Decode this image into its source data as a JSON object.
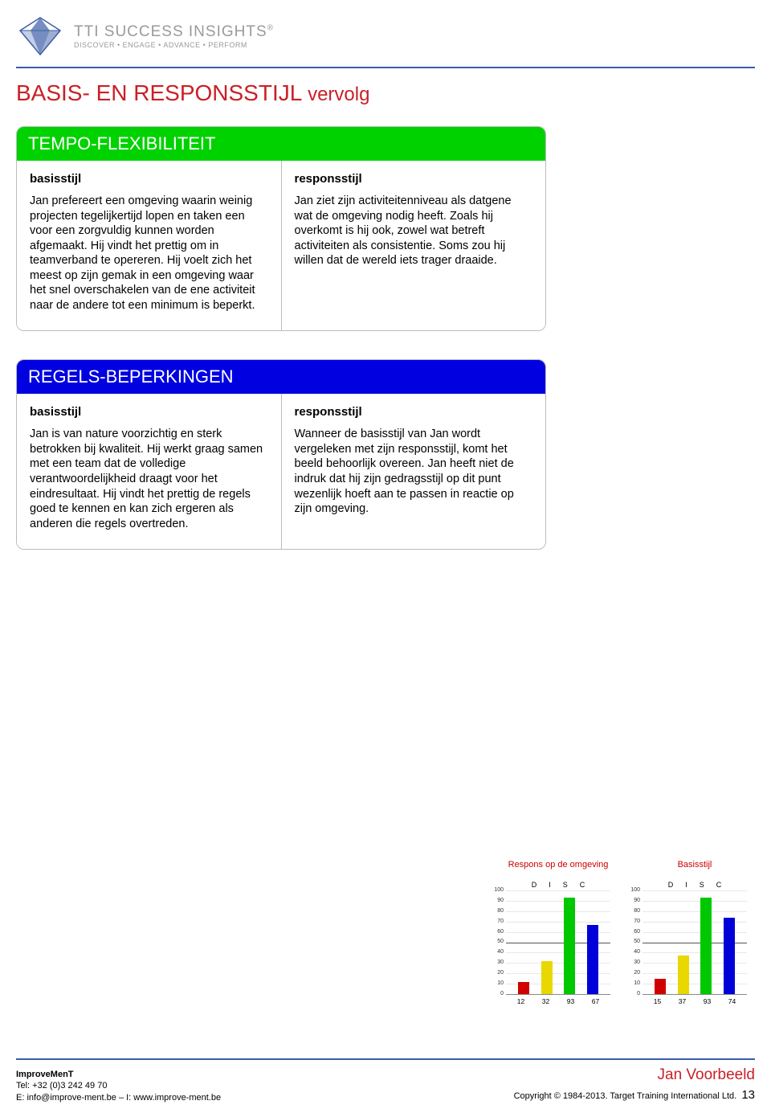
{
  "brand": {
    "name": "TTI SUCCESS INSIGHTS",
    "tagline": "DISCOVER • ENGAGE • ADVANCE • PERFORM"
  },
  "title_main": "BASIS- EN RESPONSSTIJL",
  "title_sub": "vervolg",
  "sections": [
    {
      "header": "TEMPO-FLEXIBILITEIT",
      "header_color": "#00d200",
      "col1_title": "basisstijl",
      "col1_text": "Jan prefereert een omgeving waarin weinig projecten tegelijkertijd lopen en taken een voor een zorgvuldig kunnen worden afgemaakt. Hij vindt het prettig om in teamverband te opereren. Hij voelt zich het meest op zijn gemak in een omgeving waar het snel overschakelen van de ene activiteit naar de andere tot een minimum is beperkt.",
      "col2_title": "responsstijl",
      "col2_text": "Jan ziet zijn activiteitenniveau als datgene wat de omgeving nodig heeft. Zoals hij overkomt is hij ook, zowel wat betreft activiteiten als consistentie. Soms zou hij willen dat de wereld iets trager draaide."
    },
    {
      "header": "REGELS-BEPERKINGEN",
      "header_color": "#0000e0",
      "col1_title": "basisstijl",
      "col1_text": "Jan is van nature voorzichtig en sterk betrokken bij kwaliteit. Hij werkt graag samen met een team dat de volledige verantwoordelijkheid draagt voor het eindresultaat. Hij vindt het prettig de regels goed te kennen en kan zich ergeren als anderen die regels overtreden.",
      "col2_title": "responsstijl",
      "col2_text": "Wanneer de basisstijl van Jan wordt vergeleken met zijn responsstijl, komt het beeld behoorlijk overeen. Jan heeft niet de indruk dat hij zijn gedragsstijl op dit punt wezenlijk hoeft aan te passen in reactie op zijn omgeving."
    }
  ],
  "charts": {
    "ylim": [
      0,
      100
    ],
    "ytick_step": 10,
    "meanline": 50,
    "disc_labels": [
      "D",
      "I",
      "S",
      "C"
    ],
    "bar_colors": [
      "#d00000",
      "#e8d800",
      "#00c800",
      "#0000d8"
    ],
    "left": {
      "title": "Respons op de omgeving",
      "values": [
        12,
        32,
        93,
        67
      ]
    },
    "right": {
      "title": "Basisstijl",
      "values": [
        15,
        37,
        93,
        74
      ]
    }
  },
  "footer": {
    "company": "ImproveMenT",
    "tel": "Tel: +32 (0)3 242 49 70",
    "contact": "E: info@improve-ment.be – I: www.improve-ment.be",
    "name": "Jan Voorbeeld",
    "copyright": "Copyright © 1984-2013. Target Training International Ltd.",
    "page": "13"
  }
}
